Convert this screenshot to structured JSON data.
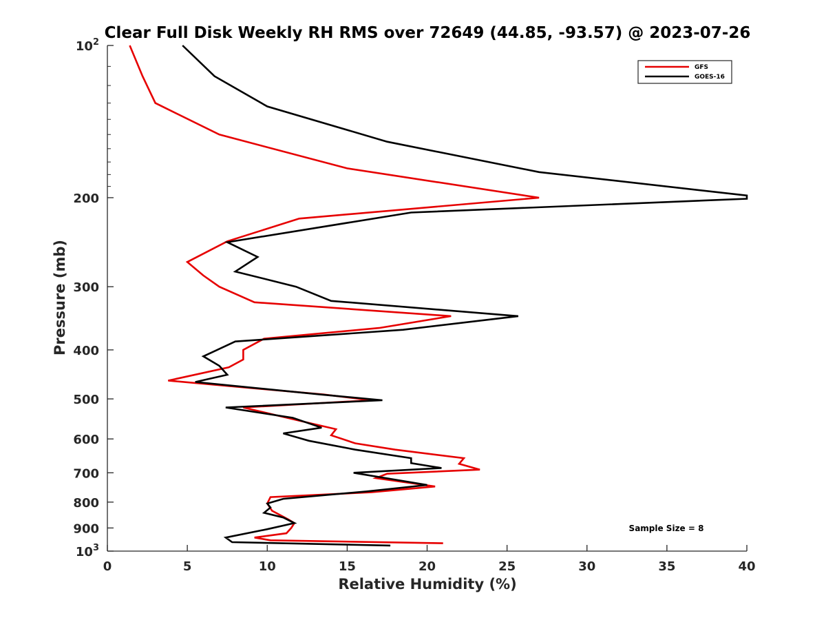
{
  "chart_data": {
    "type": "line",
    "title": "Clear Full Disk Weekly RH RMS over 72649 (44.85, -93.57) @ 2023-07-26",
    "xlabel": "Relative Humidity (%)",
    "ylabel": "Pressure (mb)",
    "xlim": [
      0,
      40
    ],
    "ylim": [
      100,
      1000
    ],
    "y_scale": "log",
    "y_reversed": true,
    "x_ticks": [
      "0",
      "5",
      "10",
      "15",
      "20",
      "25",
      "30",
      "35",
      "40"
    ],
    "y_ticks": [
      {
        "value": 100,
        "base": "10",
        "exp": "2"
      },
      {
        "value": 200,
        "label": "200"
      },
      {
        "value": 300,
        "label": "300"
      },
      {
        "value": 400,
        "label": "400"
      },
      {
        "value": 500,
        "label": "500"
      },
      {
        "value": 600,
        "label": "600"
      },
      {
        "value": 700,
        "label": "700"
      },
      {
        "value": 800,
        "label": "800"
      },
      {
        "value": 900,
        "label": "900"
      },
      {
        "value": 1000,
        "base": "10",
        "exp": "3"
      }
    ],
    "legend_position": "top-right",
    "annotation": "Sample Size = 8",
    "series": [
      {
        "name": "GFS",
        "color": "#e60000",
        "points": [
          [
            1.4,
            100
          ],
          [
            2.2,
            115
          ],
          [
            3.0,
            130
          ],
          [
            7.0,
            150
          ],
          [
            15.0,
            175
          ],
          [
            27.0,
            200
          ],
          [
            12.0,
            220
          ],
          [
            7.5,
            244
          ],
          [
            5.0,
            268
          ],
          [
            6.0,
            285
          ],
          [
            7.0,
            300
          ],
          [
            9.2,
            322
          ],
          [
            21.5,
            343
          ],
          [
            17.0,
            362
          ],
          [
            9.8,
            380
          ],
          [
            8.5,
            400
          ],
          [
            8.5,
            418
          ],
          [
            7.6,
            433
          ],
          [
            3.8,
            460
          ],
          [
            13.5,
            490
          ],
          [
            16.5,
            503
          ],
          [
            8.5,
            520
          ],
          [
            12.0,
            552
          ],
          [
            14.3,
            574
          ],
          [
            14.0,
            590
          ],
          [
            15.5,
            612
          ],
          [
            18.0,
            630
          ],
          [
            22.3,
            655
          ],
          [
            22.0,
            672
          ],
          [
            23.3,
            690
          ],
          [
            17.5,
            703
          ],
          [
            16.8,
            717
          ],
          [
            20.5,
            745
          ],
          [
            16.5,
            765
          ],
          [
            10.2,
            782
          ],
          [
            10.0,
            805
          ],
          [
            10.3,
            832
          ],
          [
            11.3,
            865
          ],
          [
            11.7,
            880
          ],
          [
            11.5,
            900
          ],
          [
            11.2,
            922
          ],
          [
            9.2,
            940
          ],
          [
            10.2,
            952
          ],
          [
            21.0,
            965
          ]
        ]
      },
      {
        "name": "GOES-16",
        "color": "#000000",
        "points": [
          [
            4.7,
            100
          ],
          [
            6.7,
            115
          ],
          [
            10.0,
            132
          ],
          [
            17.5,
            155
          ],
          [
            27.0,
            178
          ],
          [
            40.0,
            198
          ],
          [
            40.0,
            201
          ],
          [
            19.0,
            214
          ],
          [
            7.5,
            245
          ],
          [
            9.4,
            262
          ],
          [
            8.0,
            280
          ],
          [
            11.8,
            300
          ],
          [
            14.0,
            320
          ],
          [
            25.7,
            343
          ],
          [
            18.5,
            365
          ],
          [
            8.0,
            385
          ],
          [
            6.0,
            412
          ],
          [
            7.0,
            430
          ],
          [
            7.5,
            448
          ],
          [
            5.5,
            463
          ],
          [
            13.3,
            490
          ],
          [
            17.2,
            503
          ],
          [
            7.4,
            520
          ],
          [
            11.6,
            545
          ],
          [
            13.4,
            570
          ],
          [
            11.0,
            585
          ],
          [
            12.6,
            605
          ],
          [
            15.5,
            630
          ],
          [
            19.0,
            655
          ],
          [
            19.0,
            670
          ],
          [
            20.9,
            685
          ],
          [
            15.4,
            700
          ],
          [
            20.0,
            740
          ],
          [
            16.2,
            762
          ],
          [
            11.0,
            788
          ],
          [
            10.0,
            805
          ],
          [
            10.2,
            820
          ],
          [
            9.8,
            840
          ],
          [
            11.0,
            858
          ],
          [
            11.7,
            880
          ],
          [
            10.0,
            905
          ],
          [
            7.4,
            940
          ],
          [
            7.8,
            960
          ],
          [
            17.7,
            975
          ]
        ]
      }
    ]
  }
}
